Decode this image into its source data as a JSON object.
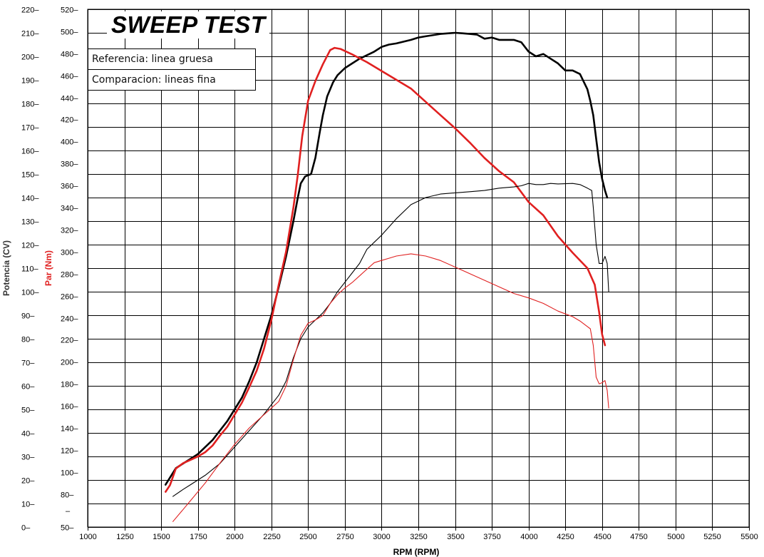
{
  "chart_data": {
    "type": "line",
    "title": "SWEEP TEST",
    "xlabel": "RPM (RPM)",
    "ylabel_left": "Potencia (CV)",
    "ylabel_right": "Par (Nm)",
    "xlim": [
      1000,
      5500
    ],
    "x_ticks": [
      1000,
      1250,
      1500,
      1750,
      2000,
      2250,
      2500,
      2750,
      3000,
      3250,
      3500,
      3750,
      4000,
      4250,
      4500,
      4750,
      5000,
      5250,
      5500
    ],
    "power_ylim": [
      0,
      220
    ],
    "power_ticks": [
      0,
      10,
      20,
      30,
      40,
      50,
      60,
      70,
      80,
      90,
      100,
      110,
      120,
      130,
      140,
      150,
      160,
      170,
      180,
      190,
      200,
      210,
      220
    ],
    "torque_ylim": [
      50,
      520
    ],
    "torque_ticks": [
      50,
      80,
      100,
      120,
      140,
      160,
      180,
      200,
      220,
      240,
      260,
      280,
      300,
      320,
      340,
      360,
      380,
      400,
      420,
      440,
      460,
      480,
      500,
      520
    ],
    "grid": true,
    "legend": [
      "Referencia: linea gruesa",
      "Comparacion: lineas fina"
    ],
    "colors": {
      "power": "#000000",
      "torque": "#e02020",
      "grid": "#000000"
    },
    "series": [
      {
        "quantity": "power",
        "unit": "CV",
        "style": "thick",
        "points": [
          [
            1530,
            18
          ],
          [
            1560,
            21
          ],
          [
            1600,
            25
          ],
          [
            1650,
            27
          ],
          [
            1700,
            29
          ],
          [
            1750,
            31
          ],
          [
            1800,
            34
          ],
          [
            1850,
            37
          ],
          [
            1900,
            41
          ],
          [
            1950,
            45
          ],
          [
            2000,
            50
          ],
          [
            2050,
            55
          ],
          [
            2100,
            62
          ],
          [
            2150,
            70
          ],
          [
            2200,
            80
          ],
          [
            2250,
            90
          ],
          [
            2300,
            102
          ],
          [
            2350,
            115
          ],
          [
            2400,
            130
          ],
          [
            2430,
            140
          ],
          [
            2450,
            146
          ],
          [
            2480,
            149
          ],
          [
            2520,
            150
          ],
          [
            2550,
            157
          ],
          [
            2580,
            168
          ],
          [
            2600,
            175
          ],
          [
            2630,
            183
          ],
          [
            2670,
            189
          ],
          [
            2700,
            192
          ],
          [
            2750,
            195
          ],
          [
            2800,
            197
          ],
          [
            2850,
            199
          ],
          [
            2900,
            200.5
          ],
          [
            2950,
            202
          ],
          [
            3000,
            204
          ],
          [
            3050,
            205
          ],
          [
            3100,
            205.5
          ],
          [
            3200,
            207
          ],
          [
            3250,
            208
          ],
          [
            3300,
            208.5
          ],
          [
            3400,
            209.5
          ],
          [
            3500,
            210
          ],
          [
            3550,
            209.8
          ],
          [
            3600,
            209.5
          ],
          [
            3650,
            209.2
          ],
          [
            3700,
            207.5
          ],
          [
            3750,
            208
          ],
          [
            3800,
            207
          ],
          [
            3900,
            207
          ],
          [
            3950,
            206
          ],
          [
            4000,
            202
          ],
          [
            4050,
            200
          ],
          [
            4100,
            201
          ],
          [
            4150,
            199
          ],
          [
            4200,
            197
          ],
          [
            4250,
            194
          ],
          [
            4300,
            194
          ],
          [
            4350,
            192.5
          ],
          [
            4400,
            186
          ],
          [
            4420,
            181
          ],
          [
            4440,
            175
          ],
          [
            4460,
            165
          ],
          [
            4480,
            155
          ],
          [
            4500,
            148
          ],
          [
            4520,
            143
          ],
          [
            4535,
            140
          ]
        ]
      },
      {
        "quantity": "torque",
        "unit": "Nm",
        "style": "thick",
        "points": [
          [
            1530,
            82
          ],
          [
            1560,
            88
          ],
          [
            1600,
            103
          ],
          [
            1650,
            108
          ],
          [
            1700,
            111
          ],
          [
            1750,
            114
          ],
          [
            1800,
            118
          ],
          [
            1850,
            124
          ],
          [
            1900,
            133
          ],
          [
            1950,
            141
          ],
          [
            2000,
            152
          ],
          [
            2050,
            163
          ],
          [
            2100,
            177
          ],
          [
            2150,
            192
          ],
          [
            2200,
            212
          ],
          [
            2250,
            238
          ],
          [
            2300,
            270
          ],
          [
            2350,
            300
          ],
          [
            2400,
            340
          ],
          [
            2430,
            370
          ],
          [
            2460,
            405
          ],
          [
            2500,
            437
          ],
          [
            2550,
            455
          ],
          [
            2600,
            470
          ],
          [
            2650,
            483
          ],
          [
            2680,
            485
          ],
          [
            2720,
            484
          ],
          [
            2800,
            479
          ],
          [
            2900,
            472
          ],
          [
            3000,
            464
          ],
          [
            3100,
            456
          ],
          [
            3200,
            448
          ],
          [
            3300,
            436
          ],
          [
            3400,
            424
          ],
          [
            3500,
            412
          ],
          [
            3600,
            399
          ],
          [
            3700,
            385
          ],
          [
            3800,
            373
          ],
          [
            3900,
            363
          ],
          [
            4000,
            345
          ],
          [
            4100,
            333
          ],
          [
            4200,
            314
          ],
          [
            4300,
            299
          ],
          [
            4400,
            285
          ],
          [
            4450,
            270
          ],
          [
            4480,
            245
          ],
          [
            4500,
            225
          ],
          [
            4520,
            215
          ]
        ]
      },
      {
        "quantity": "power",
        "unit": "CV",
        "style": "thin",
        "points": [
          [
            1580,
            13
          ],
          [
            1650,
            16
          ],
          [
            1700,
            18
          ],
          [
            1800,
            22
          ],
          [
            1900,
            27
          ],
          [
            2000,
            34
          ],
          [
            2100,
            41
          ],
          [
            2200,
            48
          ],
          [
            2250,
            52
          ],
          [
            2300,
            56
          ],
          [
            2350,
            62
          ],
          [
            2400,
            72
          ],
          [
            2450,
            80
          ],
          [
            2500,
            85
          ],
          [
            2550,
            88
          ],
          [
            2600,
            91
          ],
          [
            2650,
            95
          ],
          [
            2700,
            100
          ],
          [
            2750,
            104
          ],
          [
            2800,
            108
          ],
          [
            2850,
            112
          ],
          [
            2900,
            118
          ],
          [
            2950,
            121
          ],
          [
            3000,
            124
          ],
          [
            3100,
            131
          ],
          [
            3200,
            137
          ],
          [
            3300,
            140
          ],
          [
            3400,
            141.5
          ],
          [
            3500,
            142
          ],
          [
            3600,
            142.5
          ],
          [
            3700,
            143
          ],
          [
            3800,
            144
          ],
          [
            3900,
            144.5
          ],
          [
            3950,
            145
          ],
          [
            4000,
            146
          ],
          [
            4050,
            145.5
          ],
          [
            4100,
            145.5
          ],
          [
            4150,
            146
          ],
          [
            4200,
            145.8
          ],
          [
            4300,
            146
          ],
          [
            4350,
            145.5
          ],
          [
            4400,
            144
          ],
          [
            4430,
            143
          ],
          [
            4440,
            136
          ],
          [
            4460,
            120
          ],
          [
            4480,
            112
          ],
          [
            4500,
            112
          ],
          [
            4520,
            115
          ],
          [
            4535,
            112
          ],
          [
            4545,
            100
          ]
        ]
      },
      {
        "quantity": "torque",
        "unit": "Nm",
        "style": "thin",
        "points": [
          [
            1580,
            55
          ],
          [
            1650,
            66
          ],
          [
            1700,
            74
          ],
          [
            1800,
            90
          ],
          [
            1900,
            108
          ],
          [
            2000,
            125
          ],
          [
            2100,
            140
          ],
          [
            2200,
            152
          ],
          [
            2250,
            158
          ],
          [
            2300,
            164
          ],
          [
            2350,
            178
          ],
          [
            2400,
            202
          ],
          [
            2450,
            224
          ],
          [
            2500,
            235
          ],
          [
            2550,
            238
          ],
          [
            2600,
            242
          ],
          [
            2650,
            253
          ],
          [
            2700,
            261
          ],
          [
            2750,
            267
          ],
          [
            2800,
            272
          ],
          [
            2850,
            278
          ],
          [
            2900,
            284
          ],
          [
            2950,
            290
          ],
          [
            3000,
            292
          ],
          [
            3050,
            294
          ],
          [
            3100,
            296
          ],
          [
            3200,
            298
          ],
          [
            3300,
            296
          ],
          [
            3400,
            292
          ],
          [
            3500,
            286
          ],
          [
            3600,
            280
          ],
          [
            3700,
            274
          ],
          [
            3800,
            268
          ],
          [
            3900,
            262
          ],
          [
            4000,
            258
          ],
          [
            4100,
            253
          ],
          [
            4200,
            246
          ],
          [
            4300,
            241
          ],
          [
            4350,
            237
          ],
          [
            4400,
            232
          ],
          [
            4420,
            230
          ],
          [
            4440,
            215
          ],
          [
            4460,
            186
          ],
          [
            4480,
            180
          ],
          [
            4500,
            181
          ],
          [
            4520,
            183
          ],
          [
            4535,
            174
          ],
          [
            4545,
            158
          ]
        ]
      }
    ]
  }
}
